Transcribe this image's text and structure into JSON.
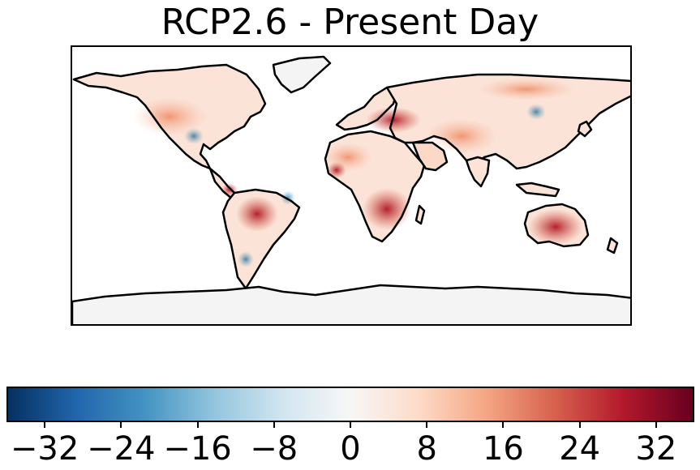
{
  "title": "RCP2.6 - Present Day",
  "colorbar": {
    "min": -36,
    "max": 36,
    "ticks": [
      -32,
      -24,
      -16,
      -8,
      0,
      8,
      16,
      24,
      32
    ],
    "tick_labels": [
      "−32",
      "−24",
      "−16",
      "−8",
      "0",
      "8",
      "16",
      "24",
      "32"
    ],
    "colors": [
      "#053061",
      "#2166ac",
      "#4393c3",
      "#92c5de",
      "#d1e5f0",
      "#f7f7f7",
      "#fddbc7",
      "#f4a582",
      "#d6604d",
      "#b2182b",
      "#67001f"
    ]
  },
  "map": {
    "land_fill": "#f4f4f4",
    "coast_color": "#000000",
    "ocean_color": "#ffffff"
  }
}
